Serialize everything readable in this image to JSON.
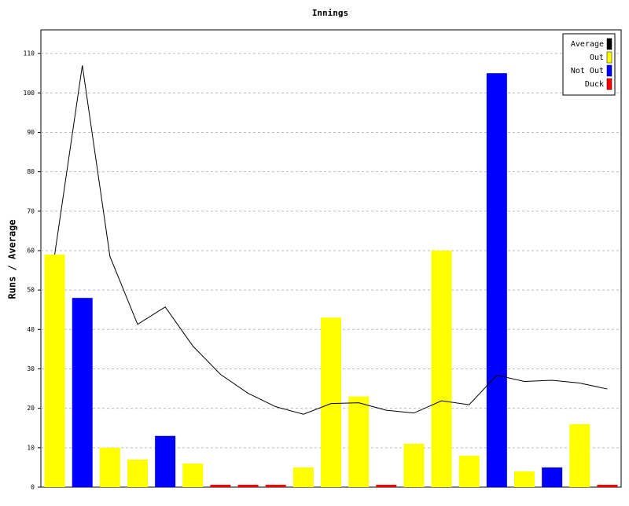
{
  "chart_data": {
    "type": "bar",
    "title": "Innings",
    "y_label": "Runs / Average",
    "categories": [
      null,
      null,
      null,
      null,
      null,
      null,
      null,
      null,
      null,
      null,
      null,
      null,
      null,
      null,
      null,
      null,
      null,
      null,
      null,
      null,
      null
    ],
    "series": [
      {
        "name": "Average",
        "color": "#000000",
        "type": "line",
        "values": [
          59,
          107,
          58.5,
          41.3,
          45.7,
          35.8,
          28.6,
          23.8,
          20.4,
          18.5,
          21.2,
          21.4,
          19.5,
          18.8,
          21.9,
          20.9,
          28.4,
          26.8,
          27.1,
          26.4,
          24.9
        ]
      },
      {
        "name": "Out",
        "color": "#ffff00",
        "type": "bar",
        "values": [
          59,
          null,
          10,
          7,
          null,
          6,
          null,
          null,
          null,
          5,
          43,
          23,
          null,
          11,
          60,
          8,
          null,
          4,
          null,
          16,
          null
        ]
      },
      {
        "name": "Not Out",
        "color": "#0000ff",
        "type": "bar",
        "values": [
          null,
          48,
          null,
          null,
          13,
          null,
          null,
          null,
          null,
          null,
          null,
          null,
          null,
          null,
          null,
          null,
          105,
          null,
          5,
          null,
          null
        ]
      },
      {
        "name": "Duck",
        "color": "#ff0000",
        "type": "bar",
        "values": [
          null,
          null,
          null,
          null,
          null,
          null,
          0,
          0,
          0,
          null,
          null,
          null,
          0,
          null,
          null,
          null,
          null,
          null,
          null,
          null,
          0
        ]
      }
    ],
    "ylim": [
      0,
      116
    ],
    "yticks": [
      0,
      10,
      20,
      30,
      40,
      50,
      60,
      70,
      80,
      90,
      100,
      110
    ],
    "grid": true,
    "legend": "top-right"
  }
}
